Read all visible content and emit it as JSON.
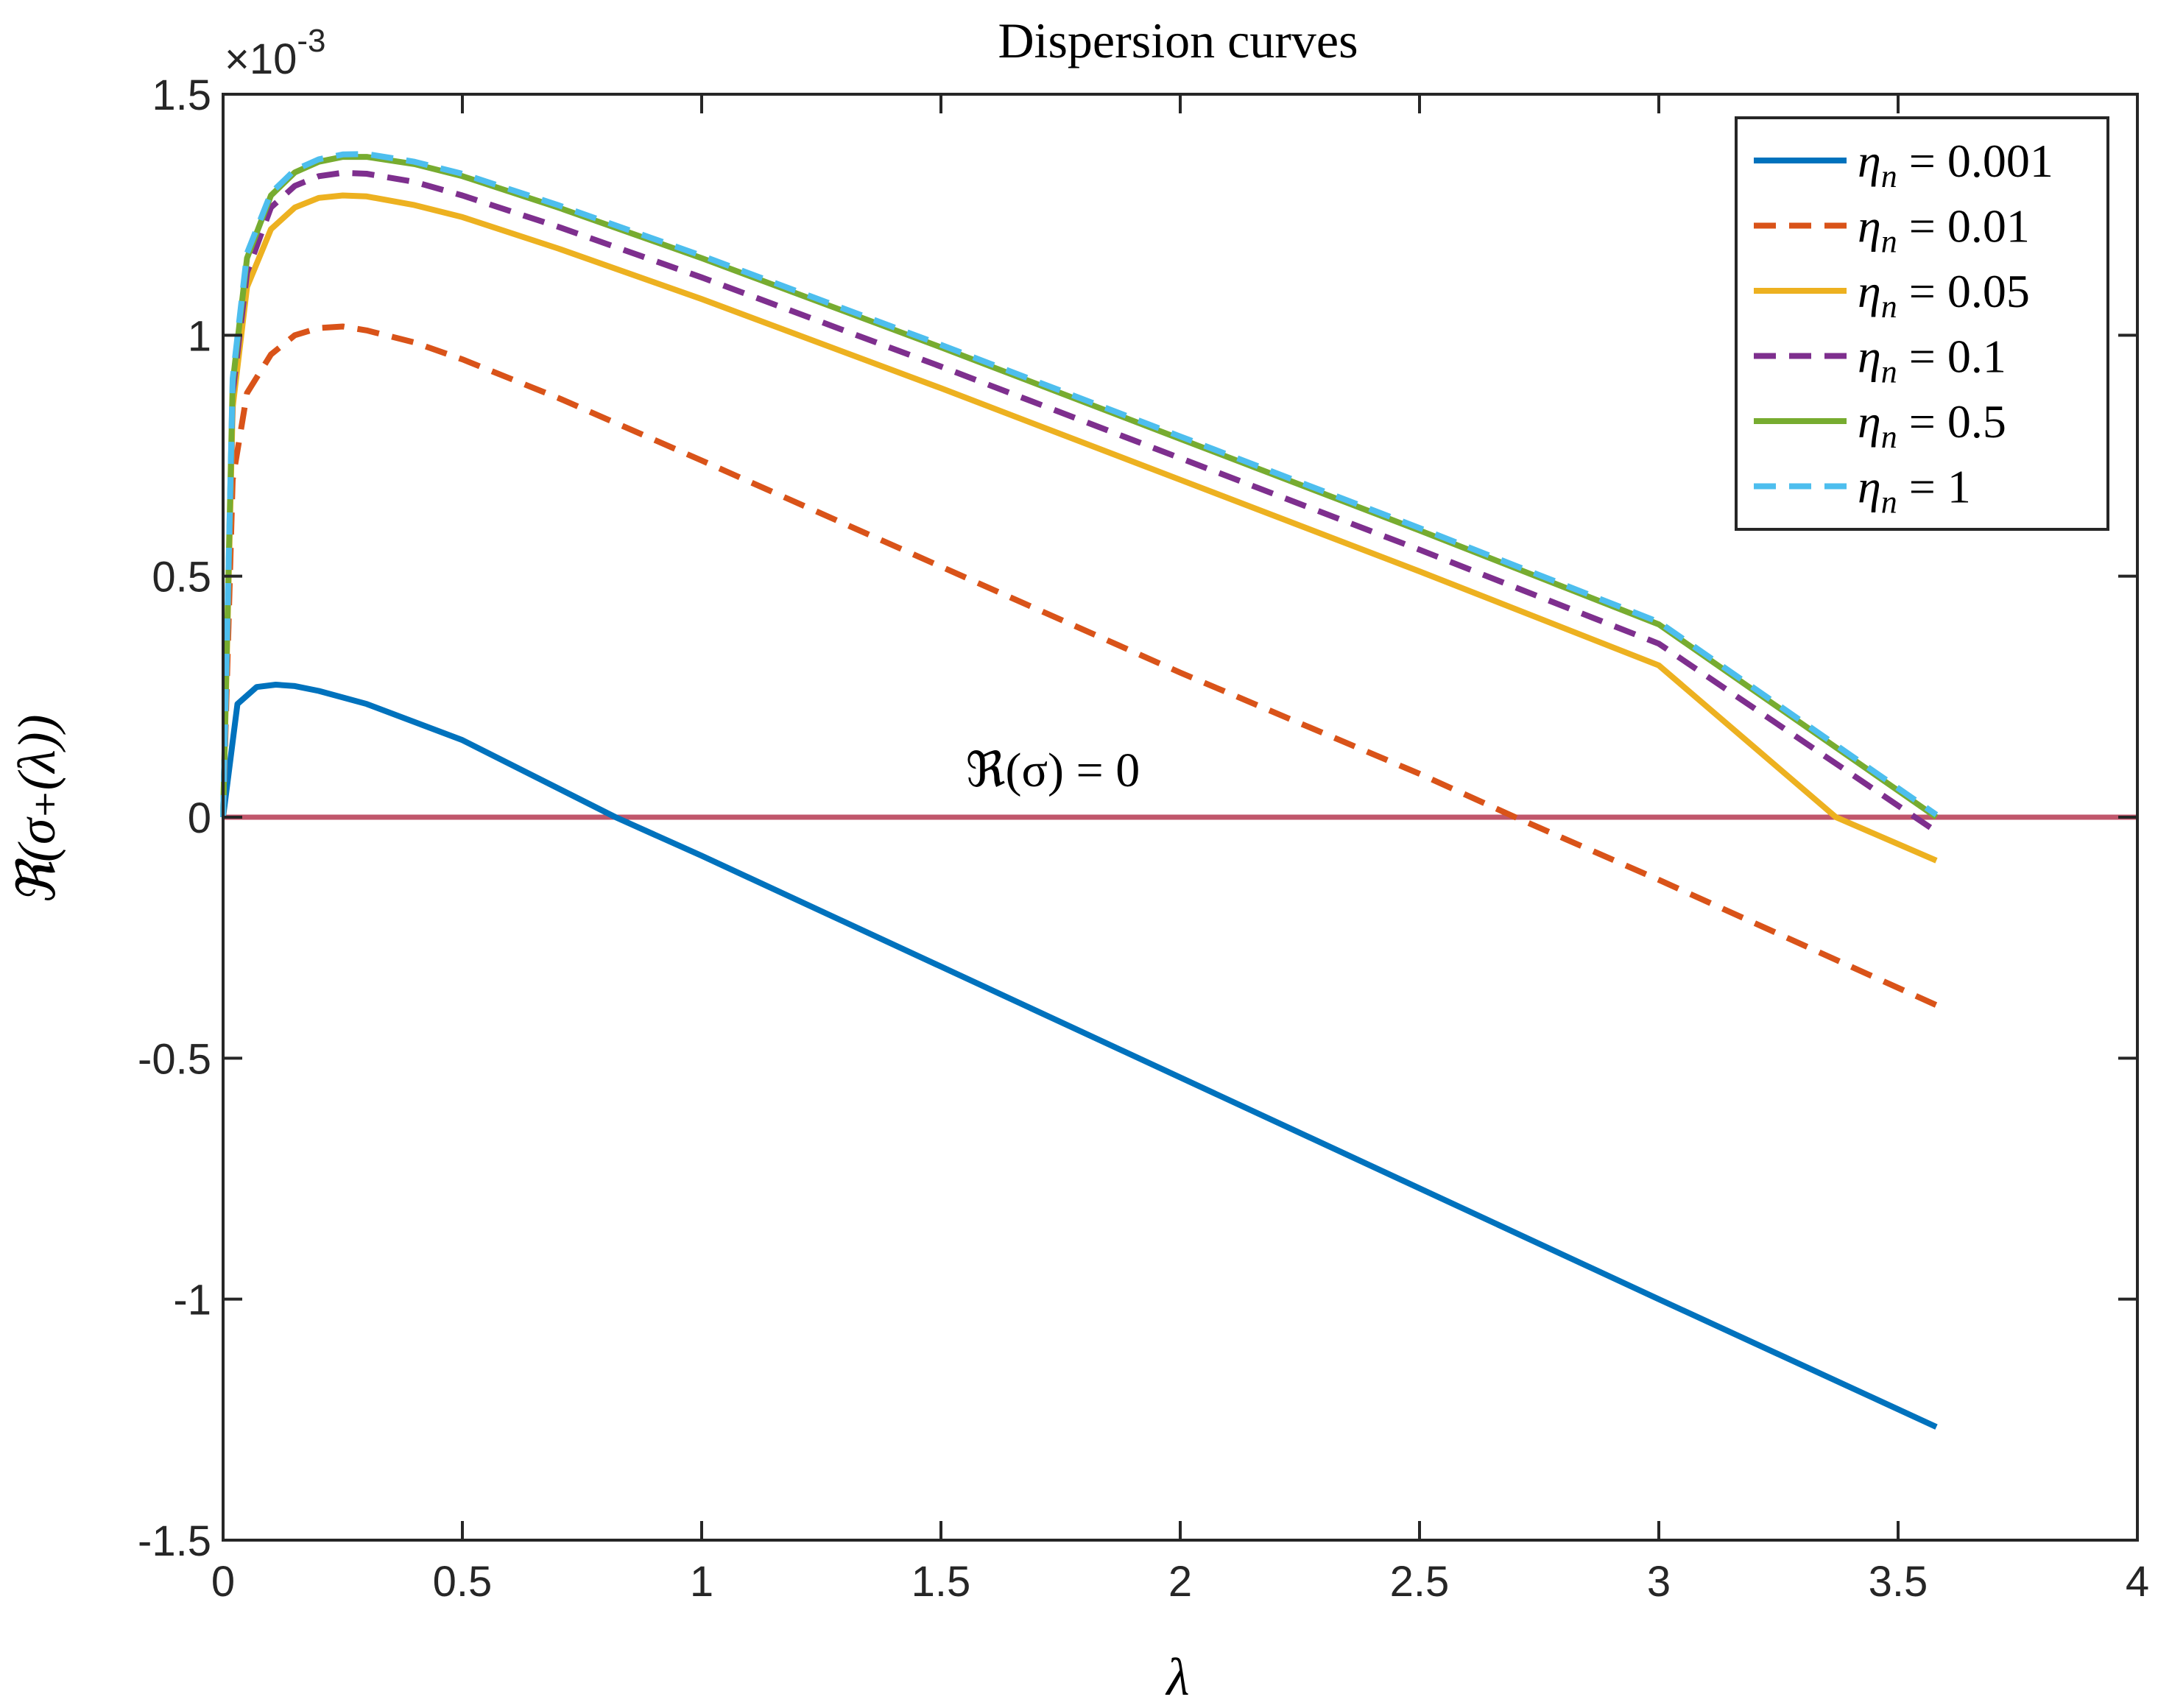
{
  "chart_data": {
    "type": "line",
    "title": "Dispersion curves",
    "xlabel": "λ",
    "ylabel": "ℜ(σ₊(λ))",
    "y_exponent_label": "×10",
    "y_exponent_power": "-3",
    "xlim": [
      0,
      4
    ],
    "ylim": [
      -1.5,
      1.5
    ],
    "x_ticks": [
      0,
      0.5,
      1,
      1.5,
      2,
      2.5,
      3,
      3.5,
      4
    ],
    "x_tick_labels": [
      "0",
      "0.5",
      "1",
      "1.5",
      "2",
      "2.5",
      "3",
      "3.5",
      "4"
    ],
    "y_ticks": [
      -1.5,
      -1,
      -0.5,
      0,
      0.5,
      1,
      1.5
    ],
    "y_tick_labels": [
      "-1.5",
      "-1",
      "-0.5",
      "0",
      "0.5",
      "1",
      "1.5"
    ],
    "grid": false,
    "legend_position": "top-right",
    "reference_line": {
      "y": 0,
      "label": "ℜ(σ) = 0",
      "color": "#c0566b",
      "label_color": "#8b0a2a"
    },
    "series": [
      {
        "name": "η_n = 0.001",
        "legend_symbol": "η",
        "legend_sub": "n",
        "legend_value": " = 0.001",
        "color": "#0072bd",
        "dash": "solid",
        "x": [
          0,
          0.03,
          0.07,
          0.11,
          0.15,
          0.2,
          0.3,
          0.5,
          0.82,
          1.0,
          1.5,
          2.0,
          2.5,
          3.0,
          3.58
        ],
        "y": [
          0,
          0.235,
          0.27,
          0.275,
          0.272,
          0.262,
          0.235,
          0.16,
          0.0,
          -0.08,
          -0.31,
          -0.54,
          -0.77,
          -1.0,
          -1.265
        ]
      },
      {
        "name": "η_n = 0.01",
        "legend_symbol": "η",
        "legend_sub": "n",
        "legend_value": " = 0.01",
        "color": "#d95319",
        "dash": "dashed",
        "x": [
          0,
          0.02,
          0.05,
          0.1,
          0.15,
          0.2,
          0.25,
          0.3,
          0.4,
          0.5,
          0.7,
          1.0,
          1.5,
          2.0,
          2.5,
          2.7,
          3.0,
          3.58
        ],
        "y": [
          0,
          0.7,
          0.88,
          0.96,
          1.0,
          1.015,
          1.018,
          1.01,
          0.985,
          0.95,
          0.87,
          0.74,
          0.52,
          0.3,
          0.09,
          0.0,
          -0.13,
          -0.39
        ]
      },
      {
        "name": "η_n = 0.05",
        "legend_symbol": "η",
        "legend_sub": "n",
        "legend_value": " = 0.05",
        "color": "#edb120",
        "dash": "solid",
        "x": [
          0,
          0.02,
          0.05,
          0.1,
          0.15,
          0.2,
          0.25,
          0.3,
          0.4,
          0.5,
          0.7,
          1.0,
          1.5,
          2.0,
          2.5,
          3.0,
          3.37,
          3.58
        ],
        "y": [
          0,
          0.85,
          1.1,
          1.22,
          1.265,
          1.285,
          1.29,
          1.288,
          1.27,
          1.245,
          1.18,
          1.075,
          0.89,
          0.7,
          0.51,
          0.315,
          0.0,
          -0.09
        ]
      },
      {
        "name": "η_n = 0.1",
        "legend_symbol": "η",
        "legend_sub": "n",
        "legend_value": " = 0.1",
        "color": "#7e2f8e",
        "dash": "dashed",
        "x": [
          0,
          0.02,
          0.05,
          0.1,
          0.15,
          0.2,
          0.25,
          0.3,
          0.4,
          0.5,
          0.7,
          1.0,
          1.5,
          2.0,
          2.5,
          3.0,
          3.58
        ],
        "y": [
          0,
          0.88,
          1.13,
          1.265,
          1.31,
          1.33,
          1.337,
          1.335,
          1.318,
          1.29,
          1.225,
          1.12,
          0.935,
          0.745,
          0.555,
          0.36,
          -0.03
        ]
      },
      {
        "name": "η_n = 0.5",
        "legend_symbol": "η",
        "legend_sub": "n",
        "legend_value": " = 0.5",
        "color": "#77ac30",
        "dash": "solid",
        "x": [
          0,
          0.02,
          0.05,
          0.1,
          0.15,
          0.2,
          0.25,
          0.3,
          0.4,
          0.5,
          0.7,
          1.0,
          1.5,
          2.0,
          2.5,
          3.0,
          3.58
        ],
        "y": [
          0,
          0.9,
          1.16,
          1.29,
          1.338,
          1.36,
          1.37,
          1.37,
          1.355,
          1.33,
          1.265,
          1.16,
          0.975,
          0.785,
          0.595,
          0.4,
          0.0
        ]
      },
      {
        "name": "η_n = 1",
        "legend_symbol": "η",
        "legend_sub": "n",
        "legend_value": " = 1",
        "color": "#4dbeee",
        "dash": "dashed",
        "x": [
          0,
          0.02,
          0.05,
          0.1,
          0.15,
          0.2,
          0.25,
          0.3,
          0.4,
          0.5,
          0.7,
          1.0,
          1.5,
          2.0,
          2.5,
          3.0,
          3.58
        ],
        "y": [
          0,
          0.91,
          1.17,
          1.295,
          1.343,
          1.365,
          1.375,
          1.376,
          1.36,
          1.335,
          1.27,
          1.165,
          0.98,
          0.79,
          0.6,
          0.405,
          0.005
        ]
      }
    ]
  }
}
